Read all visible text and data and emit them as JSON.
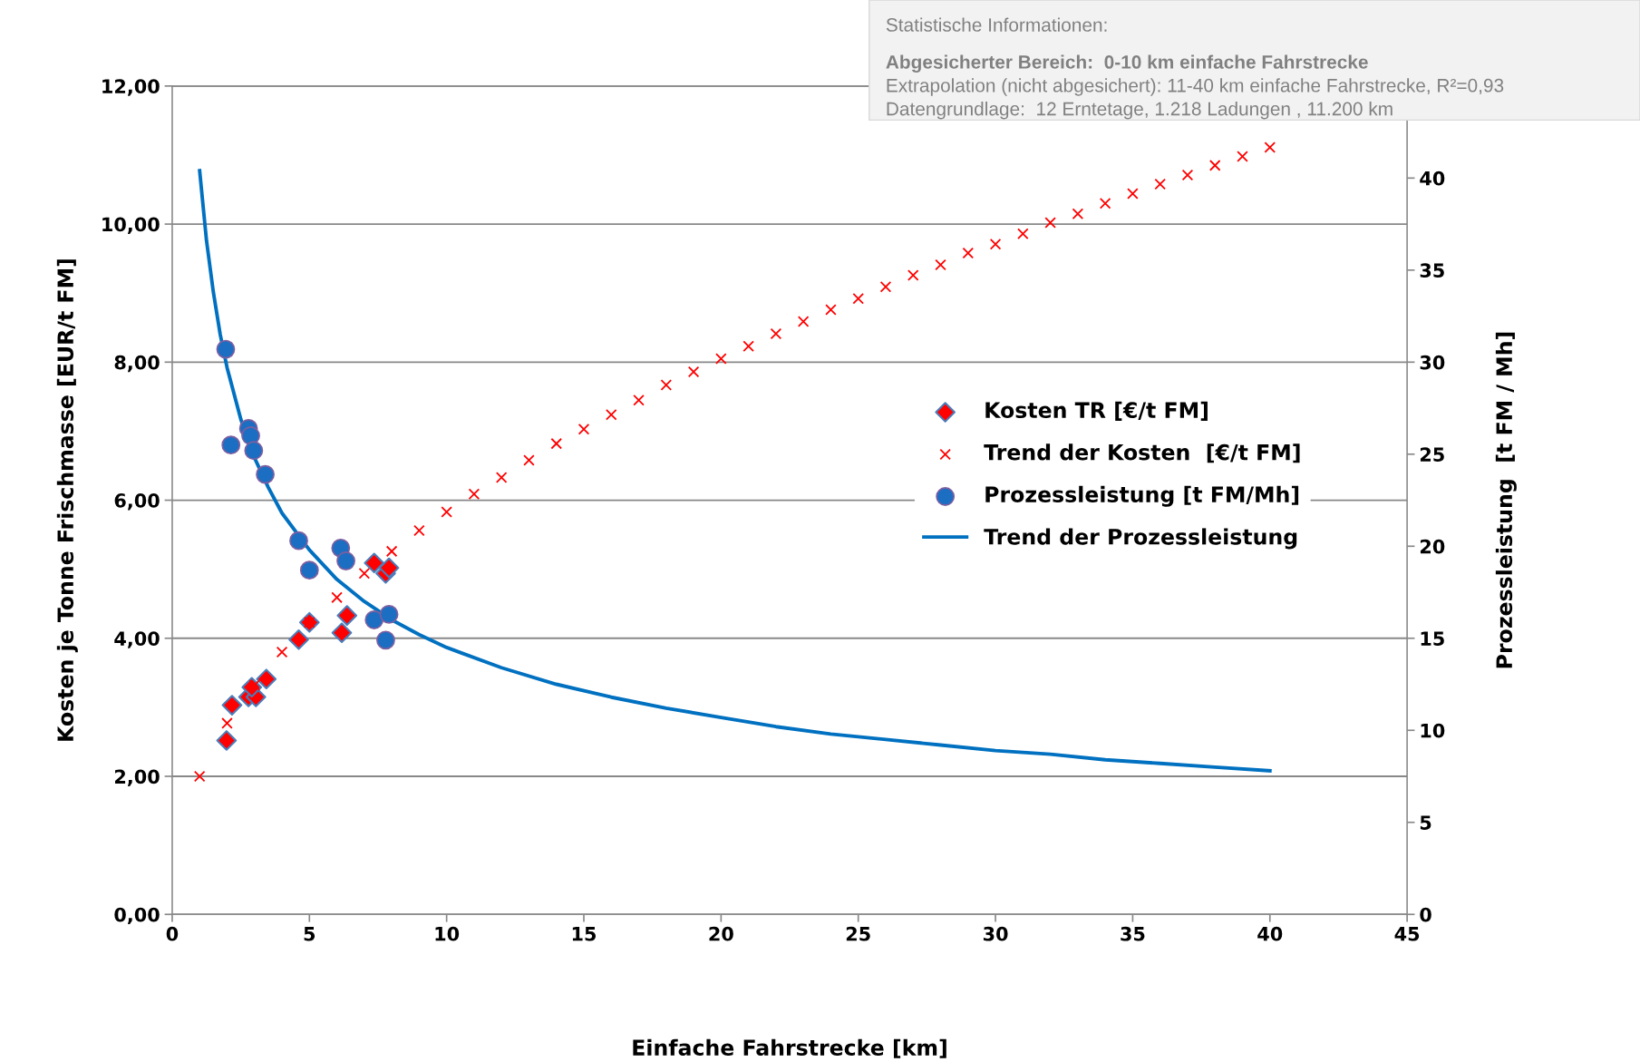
{
  "chart_data": {
    "type": "scatter",
    "xlabel": "Einfache Fahrstrecke [km]",
    "ylabel": "Kosten je Tonne Frischmasse [EUR/t FM]",
    "y2label": "Prozessleistung  [t FM / Mh]",
    "annotations": [
      "Statistische Informationen:",
      "Abgesicherter Bereich:  0-10 km einfache Fahrstrecke",
      "Extrapolation (nicht abgesichert): 11-40 km einfache Fahrstrecke, R²=0,93",
      "Datengrundlage:  12 Erntetage, 1.218 Ladungen , 11.200 km"
    ],
    "xlim": [
      0,
      45
    ],
    "xticks": [
      0,
      5,
      10,
      15,
      20,
      25,
      30,
      35,
      40,
      45
    ],
    "ylim": [
      0,
      12
    ],
    "yticks": [
      {
        "value": 0,
        "label": "0,00"
      },
      {
        "value": 2,
        "label": "2,00"
      },
      {
        "value": 4,
        "label": "4,00"
      },
      {
        "value": 6,
        "label": "6,00"
      },
      {
        "value": 8,
        "label": "8,00"
      },
      {
        "value": 10,
        "label": "10,00"
      },
      {
        "value": 12,
        "label": "12,00"
      }
    ],
    "y2lim": [
      0,
      45
    ],
    "y2ticks": [
      0,
      5,
      10,
      15,
      20,
      25,
      30,
      35,
      40
    ],
    "grid": "y",
    "legend": "right",
    "series": [
      {
        "name": "Kosten TR [€/t FM]",
        "marker": "diamond",
        "color": "#ff0000",
        "x": [
          1.98,
          2.18,
          2.78,
          3.05,
          2.9,
          3.43,
          4.61,
          5.0,
          6.18,
          6.37,
          7.36,
          7.78,
          7.9
        ],
        "values": [
          2.52,
          3.03,
          3.15,
          3.15,
          3.29,
          3.41,
          3.98,
          4.23,
          4.08,
          4.33,
          5.09,
          4.94,
          5.02
        ]
      },
      {
        "name": "Trend der Kosten  [€/t FM]",
        "marker": "cross",
        "color": "#ff0000",
        "x": [
          1,
          2,
          3,
          4,
          5,
          6,
          7,
          8,
          9,
          10,
          11,
          12,
          13,
          14,
          15,
          16,
          17,
          18,
          19,
          20,
          21,
          22,
          23,
          24,
          25,
          26,
          27,
          28,
          29,
          30,
          31,
          32,
          33,
          34,
          35,
          36,
          37,
          38,
          39,
          40
        ],
        "values": [
          2.0,
          2.77,
          3.32,
          3.8,
          4.23,
          4.59,
          4.94,
          5.26,
          5.56,
          5.83,
          6.09,
          6.33,
          6.58,
          6.82,
          7.03,
          7.24,
          7.45,
          7.67,
          7.86,
          8.05,
          8.23,
          8.41,
          8.59,
          8.76,
          8.92,
          9.09,
          9.26,
          9.41,
          9.58,
          9.71,
          9.86,
          10.02,
          10.15,
          10.3,
          10.44,
          10.58,
          10.71,
          10.85,
          10.98,
          11.11
        ]
      },
      {
        "name": "Prozessleistung [t FM/Mh]",
        "marker": "circle",
        "axis": "y2",
        "color": "#1b6ec2",
        "x": [
          1.95,
          2.14,
          2.78,
          2.86,
          2.97,
          3.39,
          4.61,
          5.0,
          6.14,
          6.33,
          7.36,
          7.9,
          7.78
        ],
        "values": [
          30.7,
          25.5,
          26.4,
          26.0,
          25.2,
          23.9,
          20.3,
          18.7,
          19.9,
          19.2,
          16.0,
          16.3,
          14.9
        ]
      },
      {
        "name": "Trend der Prozessleistung",
        "type": "line",
        "marker": "none",
        "line_style": "solid",
        "axis": "y2",
        "color": "#0070c0",
        "x": [
          1,
          1.25,
          1.5,
          1.75,
          2,
          2.5,
          3,
          3.5,
          4,
          5,
          6,
          7,
          8,
          9,
          10,
          12,
          14,
          16,
          18,
          20,
          22,
          24,
          26,
          28,
          30,
          32,
          34,
          36,
          38,
          40
        ],
        "values": [
          40.4,
          36.6,
          33.8,
          31.5,
          29.7,
          26.9,
          24.8,
          23.2,
          21.8,
          19.8,
          18.2,
          17.0,
          16.0,
          15.2,
          14.5,
          13.4,
          12.5,
          11.8,
          11.2,
          10.7,
          10.2,
          9.8,
          9.5,
          9.2,
          8.9,
          8.7,
          8.4,
          8.2,
          8.0,
          7.8
        ]
      }
    ]
  }
}
